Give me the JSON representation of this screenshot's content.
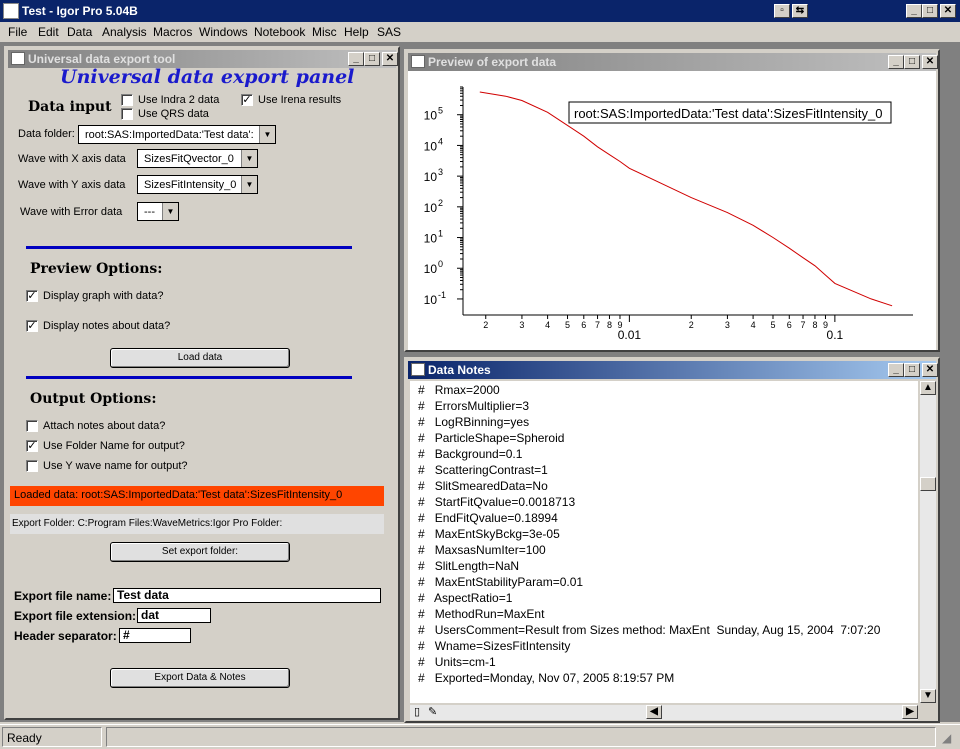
{
  "app": {
    "title": "Test - Igor Pro 5.04B"
  },
  "menu": [
    "File",
    "Edit",
    "Data",
    "Analysis",
    "Macros",
    "Windows",
    "Notebook",
    "Misc",
    "Help",
    "SAS"
  ],
  "panel": {
    "window_title": "Universal data export tool",
    "heading": "Universal data export panel",
    "data_input_label": "Data input",
    "use_indra2": {
      "label": "Use Indra 2 data",
      "checked": false
    },
    "use_qrs": {
      "label": "Use QRS data",
      "checked": false
    },
    "use_irena": {
      "label": "Use Irena results",
      "checked": true
    },
    "data_folder_label": "Data folder:",
    "data_folder_value": "root:SAS:ImportedData:'Test data':",
    "x_wave_label": "Wave with X axis data",
    "x_wave_value": "SizesFitQvector_0",
    "y_wave_label": "Wave with Y axis data",
    "y_wave_value": "SizesFitIntensity_0",
    "err_wave_label": "Wave with Error data",
    "err_wave_value": "---",
    "preview_title": "Preview Options:",
    "display_graph": {
      "label": "Display graph with data?",
      "checked": true
    },
    "display_notes": {
      "label": "Display notes about data?",
      "checked": true
    },
    "load_button": "Load data",
    "output_title": "Output Options:",
    "attach_notes": {
      "label": "Attach notes about data?",
      "checked": false
    },
    "use_folder_name": {
      "label": "Use Folder Name for output?",
      "checked": true
    },
    "use_y_name": {
      "label": "Use Y wave name for output?",
      "checked": false
    },
    "loaded_text": "Loaded data:  root:SAS:ImportedData:'Test data':SizesFitIntensity_0",
    "export_folder_text": "Export Folder:  C:Program Files:WaveMetrics:Igor Pro Folder:",
    "set_folder_button": "Set export  folder:",
    "file_name_label": "Export file name:",
    "file_name_value": "Test data",
    "file_ext_label": "Export file extension:",
    "file_ext_value": "dat",
    "header_sep_label": "Header separator:",
    "header_sep_value": "#",
    "export_button": "Export Data & Notes"
  },
  "graph": {
    "window_title": "Preview of export data",
    "legend": "root:SAS:ImportedData:'Test data':SizesFitIntensity_0"
  },
  "chart_data": {
    "type": "line",
    "title": "",
    "xlabel": "",
    "ylabel": "",
    "x_scale": "log",
    "y_scale": "log",
    "xlim": [
      0.00155,
      0.24
    ],
    "ylim": [
      0.03,
      800000
    ],
    "grid": false,
    "legend_position": "top-right",
    "series": [
      {
        "color": "#d00000",
        "x": [
          0.0018713,
          0.0025,
          0.003,
          0.004,
          0.005,
          0.006,
          0.007,
          0.008,
          0.009,
          0.01,
          0.015,
          0.02,
          0.03,
          0.04,
          0.05,
          0.06,
          0.07,
          0.08,
          0.09,
          0.1,
          0.15,
          0.18994
        ],
        "y": [
          550000,
          400000,
          290000,
          120000,
          45000,
          20000,
          9000,
          5000,
          3000,
          1800,
          500,
          200,
          65,
          25,
          10,
          4.5,
          2.2,
          1.2,
          0.6,
          0.32,
          0.1,
          0.06
        ]
      }
    ],
    "x_tick_labels": [
      "2",
      "3",
      "4",
      "5",
      "6",
      "7",
      "8",
      "9",
      "0.01",
      "2",
      "3",
      "4",
      "5",
      "6",
      "7",
      "8",
      "9",
      "0.1"
    ],
    "y_tick_labels": [
      "10",
      "10",
      "10",
      "10",
      "10",
      "10",
      "10"
    ],
    "y_tick_exponents": [
      "5",
      "4",
      "3",
      "2",
      "1",
      "0",
      "-1"
    ]
  },
  "notes": {
    "window_title": "Data Notes",
    "prefix": "#",
    "lines": [
      "Rmax=2000",
      "ErrorsMultiplier=3",
      "LogRBinning=yes",
      "ParticleShape=Spheroid",
      "Background=0.1",
      "ScatteringContrast=1",
      "SlitSmearedData=No",
      "StartFitQvalue=0.0018713",
      "EndFitQvalue=0.18994",
      "MaxEntSkyBckg=3e-05",
      "MaxsasNumIter=100",
      "SlitLength=NaN",
      "MaxEntStabilityParam=0.01",
      "AspectRatio=1",
      "MethodRun=MaxEnt",
      "UsersComment=Result from Sizes method: MaxEnt  Sunday, Aug 15, 2004  7:07:20",
      "Wname=SizesFitIntensity",
      "Units=cm-1",
      "Exported=Monday, Nov 07, 2005 8:19:57 PM"
    ]
  },
  "status": {
    "text": "Ready"
  }
}
